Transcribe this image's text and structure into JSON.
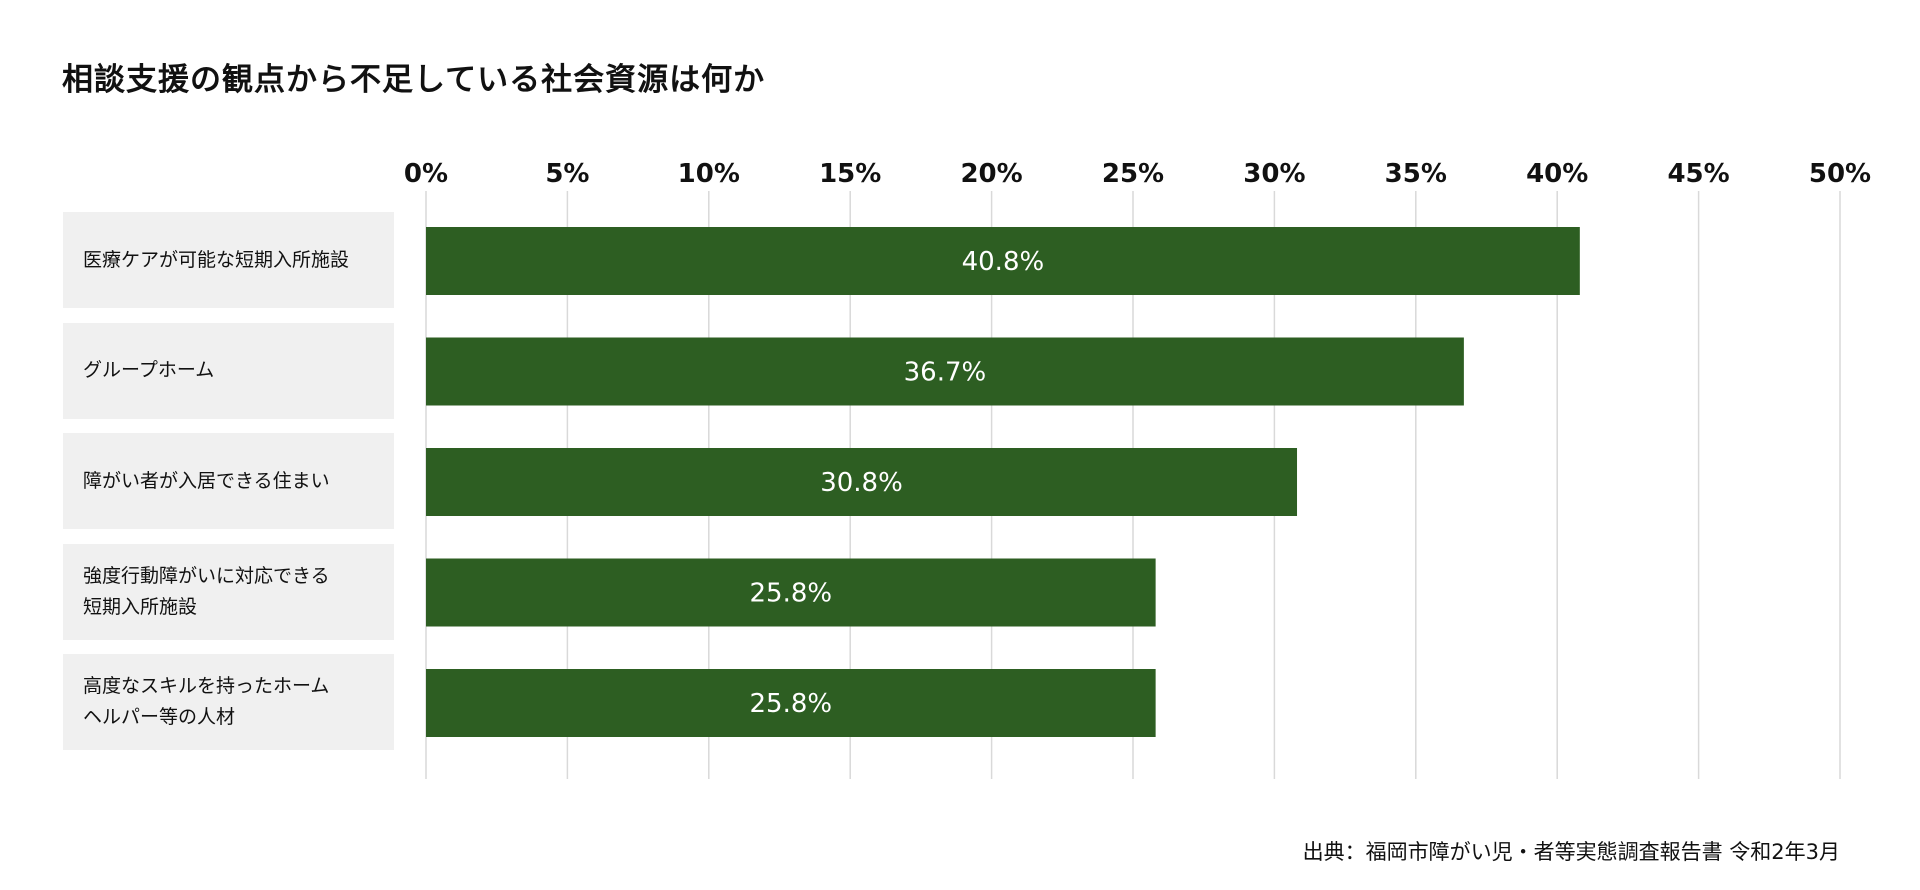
{
  "chart_data": {
    "type": "bar",
    "orientation": "horizontal",
    "title": "相談支援の観点から不足している社会資源は何か",
    "categories": [
      "医療ケアが可能な短期入所施設",
      "グループホーム",
      "障がい者が入居できる住まい",
      "強度行動障がいに対応できる短期入所施設",
      "高度なスキルを持ったホームヘルパー等の人材"
    ],
    "category_lines": [
      [
        "医療ケアが可能な短期入所施設"
      ],
      [
        "グループホーム"
      ],
      [
        "障がい者が入居できる住まい"
      ],
      [
        "強度行動障がいに対応できる",
        "短期入所施設"
      ],
      [
        "高度なスキルを持ったホーム",
        "ヘルパー等の人材"
      ]
    ],
    "values": [
      40.8,
      36.7,
      30.8,
      25.8,
      25.8
    ],
    "data_labels": [
      "40.8%",
      "36.7%",
      "30.8%",
      "25.8%",
      "25.8%"
    ],
    "xlim": [
      0,
      50
    ],
    "ticks": [
      0,
      5,
      10,
      15,
      20,
      25,
      30,
      35,
      40,
      45,
      50
    ],
    "tick_labels": [
      "0%",
      "5%",
      "10%",
      "15%",
      "20%",
      "25%",
      "30%",
      "35%",
      "40%",
      "45%",
      "50%"
    ],
    "xaxis_position": "top",
    "grid": true,
    "colors": {
      "bar": "#2d5e22",
      "grid": "#d9d9d9",
      "category_bg": "#f0f0f0",
      "bar_label": "#ffffff"
    }
  },
  "source": "出典：福岡市障がい児・者等実態調査報告書 令和2年3月"
}
